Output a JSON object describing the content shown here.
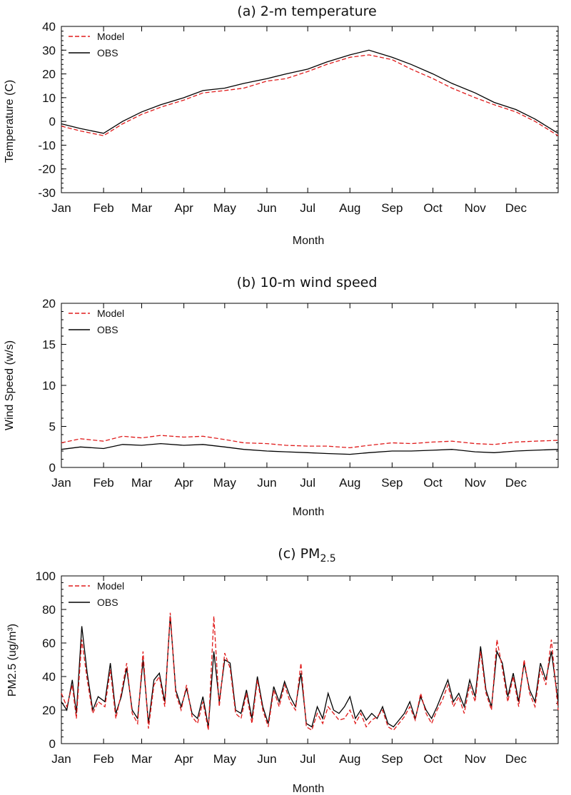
{
  "figure": {
    "panels": [
      "panel_a",
      "panel_b",
      "panel_c"
    ]
  },
  "colors": {
    "model": "#e01b1b",
    "obs": "#000000",
    "axis": "#000000"
  },
  "chart_data": [
    {
      "id": "panel_a",
      "type": "line",
      "title": "(a) 2-m temperature",
      "xlabel": "Month",
      "ylabel": "Temperature (C)",
      "ylim": [
        -30,
        40
      ],
      "yticks": [
        -30,
        -20,
        -10,
        0,
        10,
        20,
        30,
        40
      ],
      "xlim": [
        1,
        366
      ],
      "x_categories": [
        "Jan",
        "Feb",
        "Mar",
        "Apr",
        "May",
        "Jun",
        "Jul",
        "Aug",
        "Sep",
        "Oct",
        "Nov",
        "Dec"
      ],
      "legend": {
        "position": "top-left",
        "entries": [
          "Model",
          "OBS"
        ]
      },
      "series": [
        {
          "name": "Model",
          "style": "dashed",
          "color": "#e01b1b",
          "x": [
            1,
            15,
            32,
            46,
            60,
            74,
            91,
            105,
            121,
            135,
            152,
            166,
            182,
            196,
            213,
            227,
            244,
            258,
            274,
            288,
            305,
            319,
            335,
            349,
            366
          ],
          "y": [
            -2,
            -4,
            -6,
            -1,
            3,
            6,
            9,
            12,
            13,
            14,
            17,
            18,
            21,
            24,
            27,
            28,
            26,
            22,
            18,
            14,
            10,
            7,
            4,
            0,
            -6
          ]
        },
        {
          "name": "OBS",
          "style": "solid",
          "color": "#000000",
          "x": [
            1,
            15,
            32,
            46,
            60,
            74,
            91,
            105,
            121,
            135,
            152,
            166,
            182,
            196,
            213,
            227,
            244,
            258,
            274,
            288,
            305,
            319,
            335,
            349,
            366
          ],
          "y": [
            -1,
            -3,
            -5,
            0,
            4,
            7,
            10,
            13,
            14,
            16,
            18,
            20,
            22,
            25,
            28,
            30,
            27,
            24,
            20,
            16,
            12,
            8,
            5,
            1,
            -5
          ]
        }
      ]
    },
    {
      "id": "panel_b",
      "type": "line",
      "title": "(b) 10-m wind speed",
      "xlabel": "Month",
      "ylabel": "Wind Speed (w/s)",
      "ylim": [
        0,
        20
      ],
      "yticks": [
        0,
        5,
        10,
        15,
        20
      ],
      "xlim": [
        1,
        366
      ],
      "x_categories": [
        "Jan",
        "Feb",
        "Mar",
        "Apr",
        "May",
        "Jun",
        "Jul",
        "Aug",
        "Sep",
        "Oct",
        "Nov",
        "Dec"
      ],
      "legend": {
        "position": "top-left",
        "entries": [
          "Model",
          "OBS"
        ]
      },
      "series": [
        {
          "name": "Model",
          "style": "dashed",
          "color": "#e01b1b",
          "x": [
            1,
            15,
            32,
            46,
            60,
            74,
            91,
            105,
            121,
            135,
            152,
            166,
            182,
            196,
            213,
            227,
            244,
            258,
            274,
            288,
            305,
            319,
            335,
            349,
            366
          ],
          "y": [
            3.0,
            3.5,
            3.2,
            3.8,
            3.6,
            3.9,
            3.7,
            3.8,
            3.4,
            3.0,
            2.9,
            2.7,
            2.6,
            2.6,
            2.4,
            2.7,
            3.0,
            2.9,
            3.1,
            3.2,
            2.9,
            2.8,
            3.1,
            3.2,
            3.3
          ]
        },
        {
          "name": "OBS",
          "style": "solid",
          "color": "#000000",
          "x": [
            1,
            15,
            32,
            46,
            60,
            74,
            91,
            105,
            121,
            135,
            152,
            166,
            182,
            196,
            213,
            227,
            244,
            258,
            274,
            288,
            305,
            319,
            335,
            349,
            366
          ],
          "y": [
            2.2,
            2.5,
            2.3,
            2.8,
            2.7,
            2.9,
            2.7,
            2.8,
            2.5,
            2.2,
            2.0,
            1.9,
            1.8,
            1.7,
            1.6,
            1.8,
            2.0,
            2.0,
            2.1,
            2.2,
            1.9,
            1.8,
            2.0,
            2.1,
            2.2
          ]
        }
      ]
    },
    {
      "id": "panel_c",
      "type": "line",
      "title_main": "(c) PM",
      "title_sub": "2.5",
      "xlabel": "Month",
      "ylabel": "PM2.5 (ug/m³)",
      "ylim": [
        0,
        100
      ],
      "yticks": [
        0,
        20,
        40,
        60,
        80,
        100
      ],
      "xlim": [
        1,
        366
      ],
      "x_categories": [
        "Jan",
        "Feb",
        "Mar",
        "Apr",
        "May",
        "Jun",
        "Jul",
        "Aug",
        "Sep",
        "Oct",
        "Nov",
        "Dec"
      ],
      "legend": {
        "position": "top-left",
        "entries": [
          "Model",
          "OBS"
        ]
      },
      "series": [
        {
          "name": "Model",
          "style": "dashed",
          "color": "#e01b1b",
          "x": [
            1,
            5,
            9,
            12,
            16,
            20,
            24,
            28,
            33,
            37,
            41,
            45,
            49,
            53,
            57,
            61,
            65,
            69,
            73,
            77,
            81,
            85,
            89,
            93,
            97,
            101,
            105,
            109,
            113,
            117,
            121,
            125,
            129,
            133,
            137,
            141,
            145,
            149,
            153,
            157,
            161,
            165,
            169,
            173,
            177,
            181,
            185,
            189,
            193,
            197,
            201,
            205,
            209,
            213,
            217,
            221,
            225,
            229,
            233,
            237,
            241,
            245,
            249,
            253,
            257,
            261,
            265,
            269,
            273,
            277,
            281,
            285,
            289,
            293,
            297,
            301,
            305,
            309,
            313,
            317,
            321,
            325,
            329,
            333,
            337,
            341,
            345,
            349,
            353,
            357,
            361,
            366
          ],
          "y": [
            30,
            22,
            35,
            15,
            62,
            38,
            18,
            25,
            22,
            44,
            15,
            30,
            48,
            18,
            12,
            55,
            9,
            35,
            40,
            22,
            78,
            30,
            20,
            35,
            16,
            12,
            25,
            8,
            76,
            22,
            54,
            45,
            18,
            15,
            30,
            12,
            38,
            20,
            10,
            32,
            22,
            35,
            25,
            20,
            48,
            10,
            8,
            18,
            12,
            22,
            18,
            14,
            15,
            20,
            12,
            18,
            10,
            14,
            16,
            20,
            10,
            8,
            12,
            16,
            22,
            14,
            30,
            18,
            12,
            20,
            26,
            35,
            22,
            28,
            18,
            35,
            25,
            55,
            30,
            20,
            62,
            45,
            25,
            40,
            22,
            50,
            30,
            22,
            45,
            35,
            62,
            20
          ]
        },
        {
          "name": "OBS",
          "style": "solid",
          "color": "#000000",
          "x": [
            1,
            5,
            9,
            12,
            16,
            20,
            24,
            28,
            33,
            37,
            41,
            45,
            49,
            53,
            57,
            61,
            65,
            69,
            73,
            77,
            81,
            85,
            89,
            93,
            97,
            101,
            105,
            109,
            113,
            117,
            121,
            125,
            129,
            133,
            137,
            141,
            145,
            149,
            153,
            157,
            161,
            165,
            169,
            173,
            177,
            181,
            185,
            189,
            193,
            197,
            201,
            205,
            209,
            213,
            217,
            221,
            225,
            229,
            233,
            237,
            241,
            245,
            249,
            253,
            257,
            261,
            265,
            269,
            273,
            277,
            281,
            285,
            289,
            293,
            297,
            301,
            305,
            309,
            313,
            317,
            321,
            325,
            329,
            333,
            337,
            341,
            345,
            349,
            353,
            357,
            361,
            366
          ],
          "y": [
            25,
            20,
            38,
            18,
            70,
            42,
            20,
            28,
            25,
            48,
            18,
            28,
            45,
            20,
            15,
            50,
            12,
            38,
            42,
            25,
            76,
            32,
            22,
            33,
            18,
            15,
            28,
            10,
            55,
            25,
            50,
            48,
            20,
            18,
            32,
            15,
            40,
            22,
            12,
            34,
            25,
            37,
            28,
            22,
            42,
            12,
            10,
            22,
            15,
            30,
            20,
            18,
            22,
            28,
            15,
            20,
            14,
            18,
            15,
            22,
            12,
            10,
            14,
            18,
            25,
            15,
            28,
            20,
            15,
            22,
            30,
            38,
            25,
            30,
            22,
            38,
            28,
            58,
            32,
            22,
            55,
            48,
            28,
            42,
            25,
            48,
            32,
            25,
            48,
            38,
            55,
            25
          ]
        }
      ]
    }
  ]
}
